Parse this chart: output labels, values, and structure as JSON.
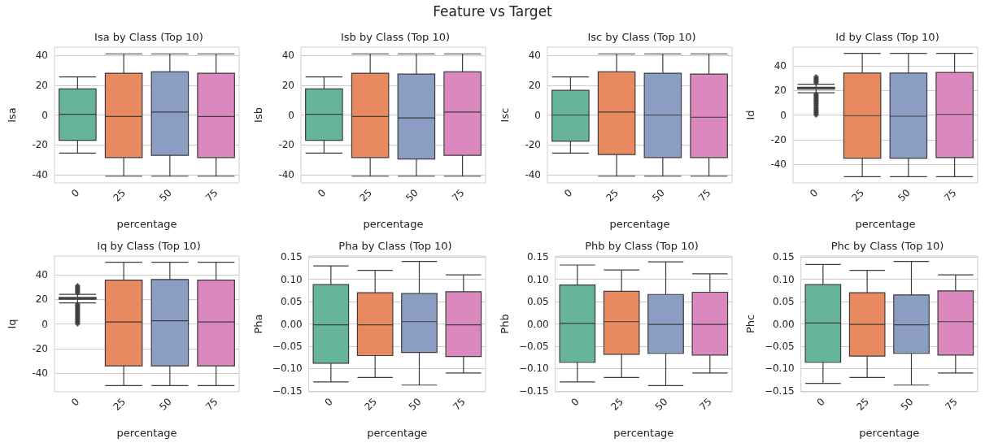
{
  "chart_data": [
    {
      "type": "box",
      "title": "Isa by Class (Top 10)",
      "annotations": [
        "Feature vs Target"
      ],
      "xlabel": "percentage",
      "ylabel": "Isa",
      "categories": [
        "0",
        "25",
        "50",
        "75"
      ],
      "colors": [
        "#66b59a",
        "#e8895f",
        "#8c9dc4",
        "#db88bf"
      ],
      "ylim": [
        -45.5,
        45.5
      ],
      "yticks": [
        -40,
        -20,
        0,
        20,
        40
      ],
      "grid": "y",
      "boxes": [
        {
          "low": -25.5,
          "q1": -17,
          "median": 0.5,
          "q3": 17.5,
          "high": 25.5
        },
        {
          "low": -41,
          "q1": -28.5,
          "median": -1,
          "q3": 28,
          "high": 41
        },
        {
          "low": -41,
          "q1": -27,
          "median": 2,
          "q3": 29,
          "high": 41
        },
        {
          "low": -41,
          "q1": -28.5,
          "median": -1,
          "q3": 28,
          "high": 41
        }
      ]
    },
    {
      "type": "box",
      "title": "Isb by Class (Top 10)",
      "xlabel": "percentage",
      "ylabel": "Isb",
      "categories": [
        "0",
        "25",
        "50",
        "75"
      ],
      "colors": [
        "#66b59a",
        "#e8895f",
        "#8c9dc4",
        "#db88bf"
      ],
      "ylim": [
        -45.5,
        45.5
      ],
      "yticks": [
        -40,
        -20,
        0,
        20,
        40
      ],
      "grid": "y",
      "boxes": [
        {
          "low": -25.5,
          "q1": -17,
          "median": 0.5,
          "q3": 17.5,
          "high": 25.5
        },
        {
          "low": -41,
          "q1": -28.5,
          "median": -1,
          "q3": 28,
          "high": 41
        },
        {
          "low": -41,
          "q1": -29.5,
          "median": -2,
          "q3": 27.5,
          "high": 41
        },
        {
          "low": -41,
          "q1": -27,
          "median": 2,
          "q3": 29,
          "high": 41
        }
      ]
    },
    {
      "type": "box",
      "title": "Isc by Class (Top 10)",
      "xlabel": "percentage",
      "ylabel": "Isc",
      "categories": [
        "0",
        "25",
        "50",
        "75"
      ],
      "colors": [
        "#66b59a",
        "#e8895f",
        "#8c9dc4",
        "#db88bf"
      ],
      "ylim": [
        -45.5,
        45.5
      ],
      "yticks": [
        -40,
        -20,
        0,
        20,
        40
      ],
      "grid": "y",
      "boxes": [
        {
          "low": -25.5,
          "q1": -17.5,
          "median": 0,
          "q3": 16.5,
          "high": 25.5
        },
        {
          "low": -41,
          "q1": -26.5,
          "median": 2,
          "q3": 29,
          "high": 41
        },
        {
          "low": -41,
          "q1": -28.5,
          "median": 0,
          "q3": 28,
          "high": 41
        },
        {
          "low": -41,
          "q1": -28.5,
          "median": -1.5,
          "q3": 27.5,
          "high": 41
        }
      ]
    },
    {
      "type": "box",
      "title": "Id by Class (Top 10)",
      "xlabel": "percentage",
      "ylabel": "Id",
      "categories": [
        "0",
        "25",
        "50",
        "75"
      ],
      "colors": [
        "#66b59a",
        "#e8895f",
        "#8c9dc4",
        "#db88bf"
      ],
      "ylim": [
        -55,
        55
      ],
      "yticks": [
        -40,
        -20,
        0,
        20,
        40
      ],
      "grid": "y",
      "boxes": [
        {
          "low": 18,
          "q1": 21,
          "median": 22,
          "q3": 22.5,
          "high": 25,
          "outliers": [
            0,
            1,
            2,
            3,
            4,
            5,
            6,
            7,
            8,
            9,
            10,
            11,
            12,
            13,
            14,
            15,
            16,
            17,
            26,
            27,
            28,
            29,
            30,
            31
          ]
        },
        {
          "low": -50,
          "q1": -35,
          "median": -0.5,
          "q3": 34,
          "high": 50
        },
        {
          "low": -50,
          "q1": -35,
          "median": -1,
          "q3": 34,
          "high": 50
        },
        {
          "low": -50,
          "q1": -34.5,
          "median": 0.5,
          "q3": 34.5,
          "high": 50
        }
      ]
    },
    {
      "type": "box",
      "title": "Iq by Class (Top 10)",
      "xlabel": "percentage",
      "ylabel": "Iq",
      "categories": [
        "0",
        "25",
        "50",
        "75"
      ],
      "colors": [
        "#66b59a",
        "#e8895f",
        "#8c9dc4",
        "#db88bf"
      ],
      "ylim": [
        -55,
        55
      ],
      "yticks": [
        -40,
        -20,
        0,
        20,
        40
      ],
      "grid": "y",
      "boxes": [
        {
          "low": 17,
          "q1": 20,
          "median": 20.5,
          "q3": 21.5,
          "high": 24,
          "outliers": [
            0,
            1,
            2,
            3,
            4,
            5,
            6,
            7,
            8,
            9,
            10,
            11,
            12,
            13,
            14,
            15,
            16,
            25,
            26,
            27,
            28,
            29,
            30,
            31
          ]
        },
        {
          "low": -50,
          "q1": -34,
          "median": 1.5,
          "q3": 35.5,
          "high": 50
        },
        {
          "low": -50,
          "q1": -34,
          "median": 2.5,
          "q3": 36,
          "high": 50
        },
        {
          "low": -50,
          "q1": -34,
          "median": 1.5,
          "q3": 35.5,
          "high": 50
        }
      ]
    },
    {
      "type": "box",
      "title": "Pha by Class (Top 10)",
      "xlabel": "percentage",
      "ylabel": "Pha",
      "categories": [
        "0",
        "25",
        "50",
        "75"
      ],
      "colors": [
        "#66b59a",
        "#e8895f",
        "#8c9dc4",
        "#db88bf"
      ],
      "ylim": [
        -0.152,
        0.152
      ],
      "yticks": [
        {
          "value": -0.15,
          "label": "−0.15"
        },
        {
          "value": -0.1,
          "label": "−0.10"
        },
        {
          "value": -0.05,
          "label": "−0.05"
        },
        {
          "value": 0,
          "label": "0.00"
        },
        {
          "value": 0.05,
          "label": "0.05"
        },
        {
          "value": 0.1,
          "label": "0.10"
        },
        {
          "value": 0.15,
          "label": "0.15"
        }
      ],
      "grid": "y",
      "boxes": [
        {
          "low": -0.13,
          "q1": -0.088,
          "median": -0.002,
          "q3": 0.088,
          "high": 0.13
        },
        {
          "low": -0.12,
          "q1": -0.071,
          "median": -0.002,
          "q3": 0.07,
          "high": 0.12
        },
        {
          "low": -0.137,
          "q1": -0.064,
          "median": 0.005,
          "q3": 0.068,
          "high": 0.14
        },
        {
          "low": -0.11,
          "q1": -0.073,
          "median": -0.002,
          "q3": 0.072,
          "high": 0.11
        }
      ]
    },
    {
      "type": "box",
      "title": "Phb by Class (Top 10)",
      "xlabel": "percentage",
      "ylabel": "Phb",
      "categories": [
        "0",
        "25",
        "50",
        "75"
      ],
      "colors": [
        "#66b59a",
        "#e8895f",
        "#8c9dc4",
        "#db88bf"
      ],
      "ylim": [
        -0.152,
        0.152
      ],
      "yticks": [
        {
          "value": -0.15,
          "label": "−0.15"
        },
        {
          "value": -0.1,
          "label": "−0.10"
        },
        {
          "value": -0.05,
          "label": "−0.05"
        },
        {
          "value": 0,
          "label": "0.00"
        },
        {
          "value": 0.05,
          "label": "0.05"
        },
        {
          "value": 0.1,
          "label": "0.10"
        },
        {
          "value": 0.15,
          "label": "0.15"
        }
      ],
      "grid": "y",
      "boxes": [
        {
          "low": -0.13,
          "q1": -0.086,
          "median": 0.001,
          "q3": 0.087,
          "high": 0.132
        },
        {
          "low": -0.12,
          "q1": -0.068,
          "median": 0.005,
          "q3": 0.073,
          "high": 0.121
        },
        {
          "low": -0.138,
          "q1": -0.066,
          "median": -0.001,
          "q3": 0.066,
          "high": 0.139
        },
        {
          "low": -0.11,
          "q1": -0.07,
          "median": -0.001,
          "q3": 0.071,
          "high": 0.112
        }
      ]
    },
    {
      "type": "box",
      "title": "Phc by Class (Top 10)",
      "xlabel": "percentage",
      "ylabel": "Phc",
      "categories": [
        "0",
        "25",
        "50",
        "75"
      ],
      "colors": [
        "#66b59a",
        "#e8895f",
        "#8c9dc4",
        "#db88bf"
      ],
      "ylim": [
        -0.152,
        0.152
      ],
      "yticks": [
        {
          "value": -0.15,
          "label": "−0.15"
        },
        {
          "value": -0.1,
          "label": "−0.10"
        },
        {
          "value": -0.05,
          "label": "−0.05"
        },
        {
          "value": 0,
          "label": "0.00"
        },
        {
          "value": 0.05,
          "label": "0.05"
        },
        {
          "value": 0.1,
          "label": "0.10"
        },
        {
          "value": 0.15,
          "label": "0.15"
        }
      ],
      "grid": "y",
      "boxes": [
        {
          "low": -0.133,
          "q1": -0.086,
          "median": 0.002,
          "q3": 0.088,
          "high": 0.133
        },
        {
          "low": -0.12,
          "q1": -0.072,
          "median": -0.001,
          "q3": 0.07,
          "high": 0.12
        },
        {
          "low": -0.137,
          "q1": -0.066,
          "median": -0.002,
          "q3": 0.065,
          "high": 0.14
        },
        {
          "low": -0.11,
          "q1": -0.07,
          "median": 0.005,
          "q3": 0.074,
          "high": 0.11
        }
      ]
    }
  ]
}
